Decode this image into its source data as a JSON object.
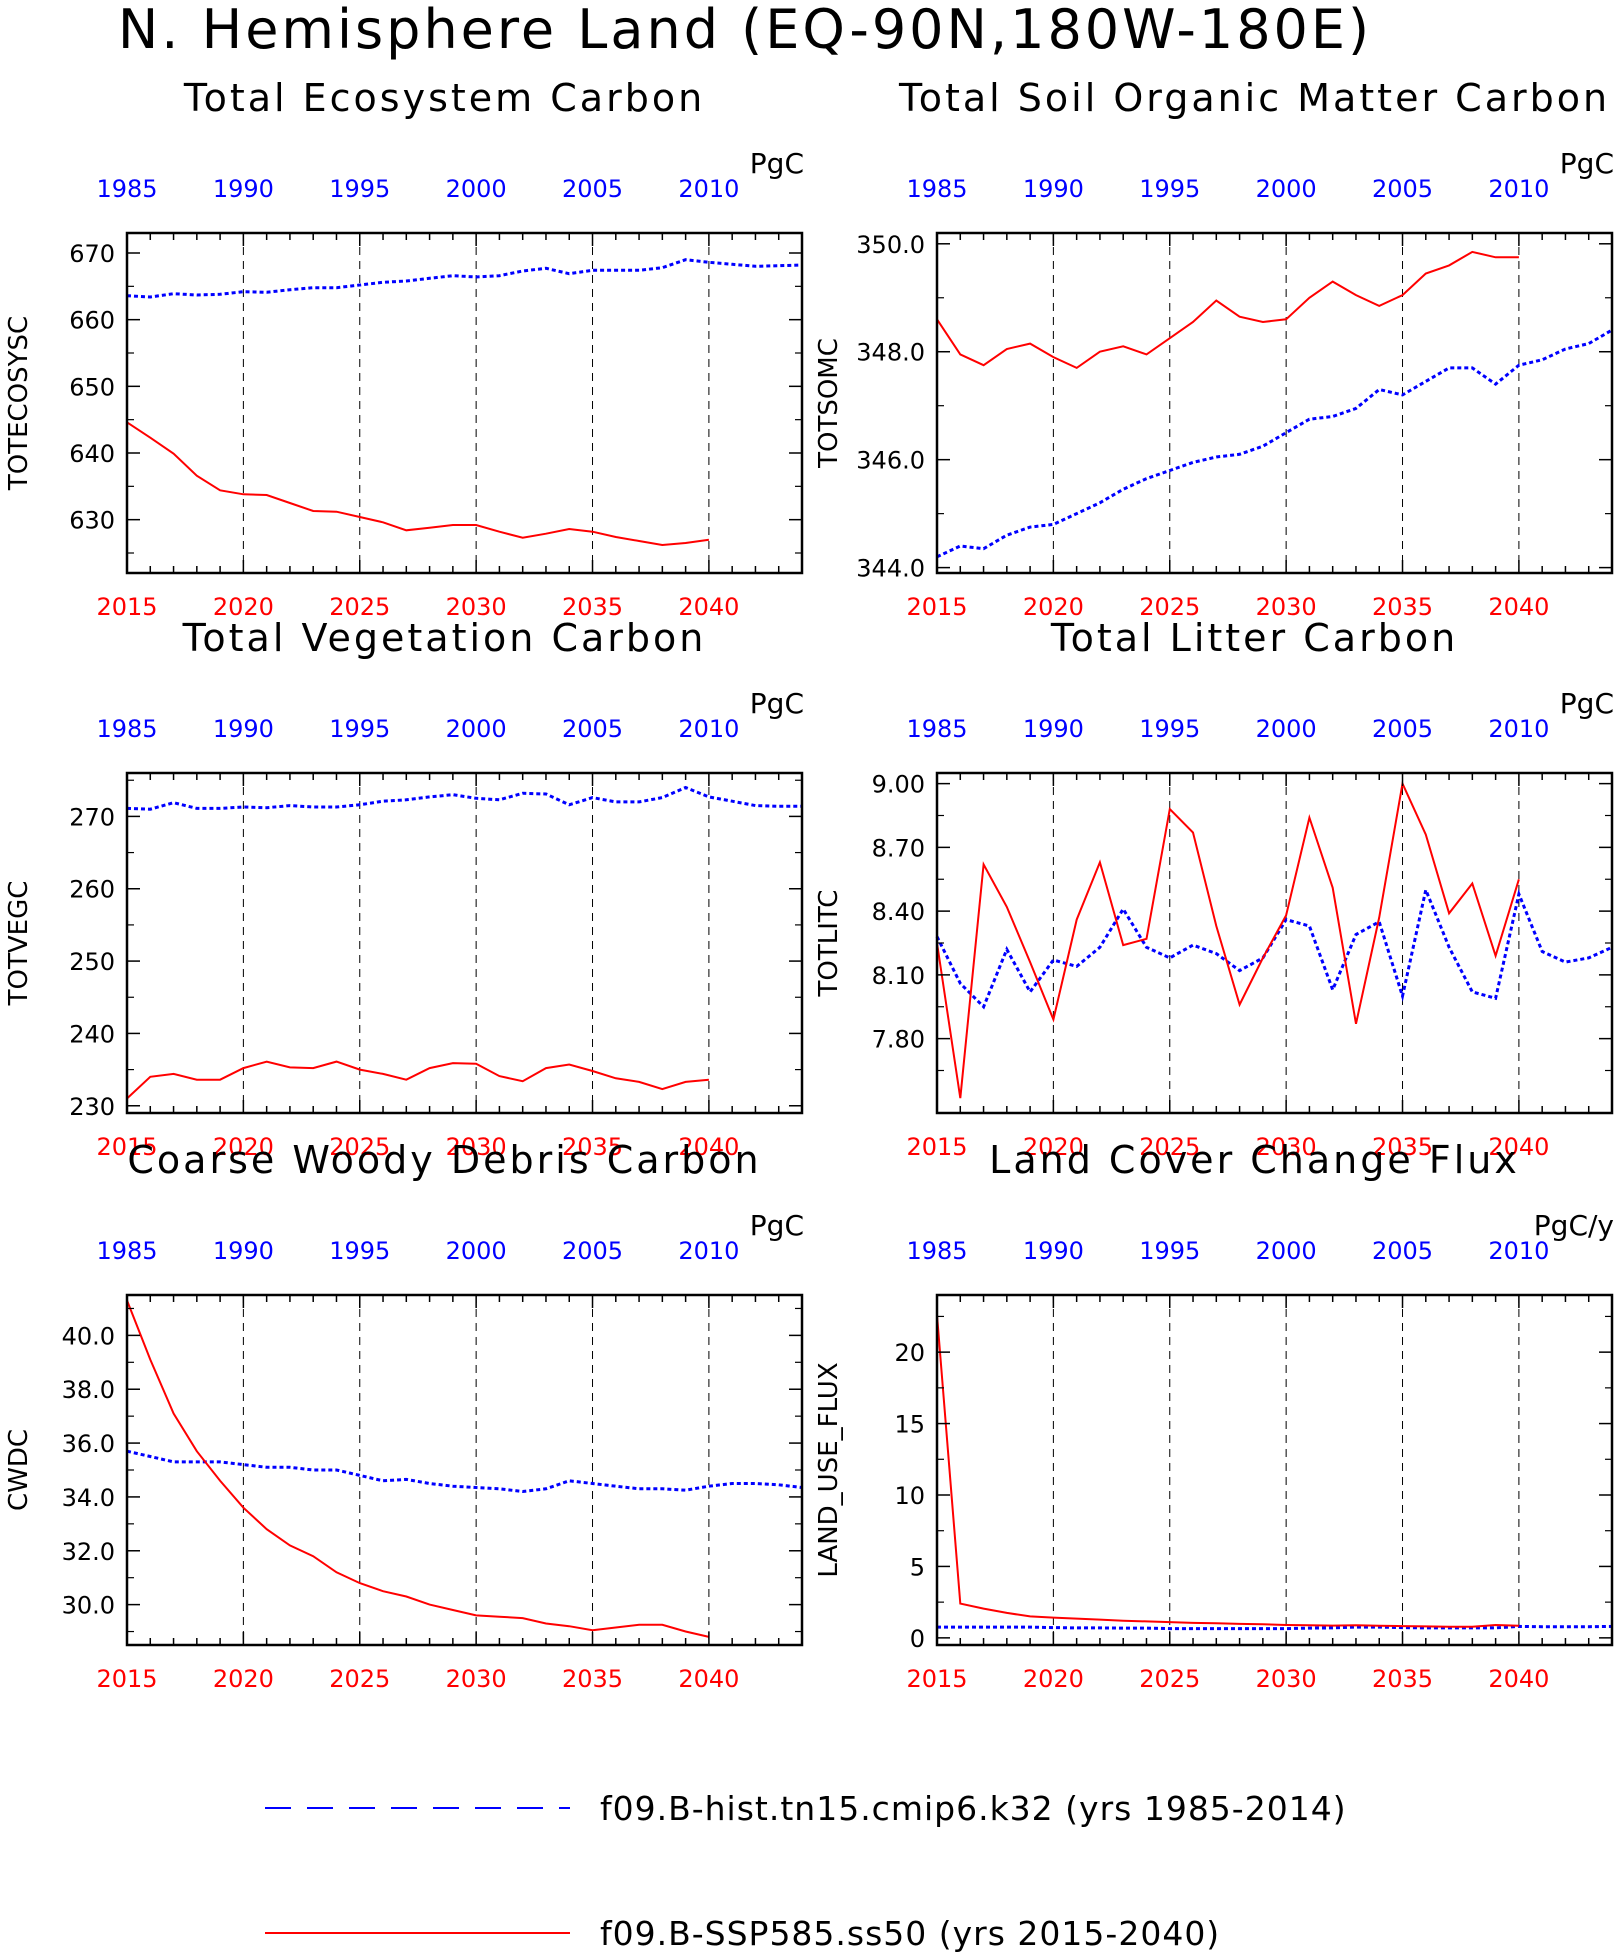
{
  "title": "N. Hemisphere Land (EQ-90N,180W-180E)",
  "colors": {
    "hist": "#0000ff",
    "ssp": "#ff0000",
    "axis": "#000000"
  },
  "legend": {
    "hist": {
      "label": "f09.B-hist.tn15.cmip6.k32 (yrs 1985-2014)",
      "style": "dashed",
      "color": "#0000ff"
    },
    "ssp": {
      "label": "f09.B-SSP585.ss50 (yrs 2015-2040)",
      "style": "solid",
      "color": "#ff0000"
    }
  },
  "chart_data": [
    {
      "type": "line",
      "title": "Total Ecosystem Carbon",
      "ylabel": "TOTECOSYSC",
      "units": "PgC",
      "ylim": [
        622,
        673
      ],
      "yticks": [
        630,
        640,
        650,
        660,
        670
      ],
      "ytick_labels": [
        "630",
        "640",
        "650",
        "660",
        "670"
      ],
      "xlim_bottom": [
        2015,
        2044
      ],
      "xlim_top": [
        1985,
        2014
      ],
      "xticks_bottom": [
        2015,
        2020,
        2025,
        2030,
        2035,
        2040
      ],
      "xticks_top": [
        1985,
        1990,
        1995,
        2000,
        2005,
        2010
      ],
      "series": [
        {
          "name": "f09.B-hist.tn15.cmip6.k32",
          "axis": "top",
          "color": "#0000ff",
          "style": "dashed",
          "x": [
            1985,
            1986,
            1987,
            1988,
            1989,
            1990,
            1991,
            1992,
            1993,
            1994,
            1995,
            1996,
            1997,
            1998,
            1999,
            2000,
            2001,
            2002,
            2003,
            2004,
            2005,
            2006,
            2007,
            2008,
            2009,
            2010,
            2011,
            2012,
            2013,
            2014
          ],
          "y": [
            663.6,
            663.4,
            663.9,
            663.7,
            663.8,
            664.2,
            664.1,
            664.5,
            664.8,
            664.8,
            665.2,
            665.6,
            665.8,
            666.2,
            666.6,
            666.4,
            666.6,
            667.3,
            667.7,
            666.9,
            667.4,
            667.4,
            667.4,
            667.8,
            669.0,
            668.6,
            668.3,
            668.0,
            668.1,
            668.2
          ]
        },
        {
          "name": "f09.B-SSP585.ss50",
          "axis": "bottom",
          "color": "#ff0000",
          "style": "solid",
          "x": [
            2015,
            2016,
            2017,
            2018,
            2019,
            2020,
            2021,
            2022,
            2023,
            2024,
            2025,
            2026,
            2027,
            2028,
            2029,
            2030,
            2031,
            2032,
            2033,
            2034,
            2035,
            2036,
            2037,
            2038,
            2039,
            2040
          ],
          "y": [
            644.6,
            642.3,
            639.9,
            636.6,
            634.4,
            633.8,
            633.7,
            632.5,
            631.3,
            631.2,
            630.4,
            629.6,
            628.4,
            628.8,
            629.2,
            629.2,
            628.2,
            627.3,
            627.9,
            628.6,
            628.2,
            627.4,
            626.8,
            626.2,
            626.5,
            627.0
          ]
        }
      ]
    },
    {
      "type": "line",
      "title": "Total Soil Organic Matter Carbon",
      "ylabel": "TOTSOMC",
      "units": "PgC",
      "ylim": [
        343.9,
        350.2
      ],
      "yticks": [
        344.0,
        346.0,
        348.0,
        350.0
      ],
      "ytick_labels": [
        "344.0",
        "346.0",
        "348.0",
        "350.0"
      ],
      "xlim_bottom": [
        2015,
        2044
      ],
      "xlim_top": [
        1985,
        2014
      ],
      "xticks_bottom": [
        2015,
        2020,
        2025,
        2030,
        2035,
        2040
      ],
      "xticks_top": [
        1985,
        1990,
        1995,
        2000,
        2005,
        2010
      ],
      "series": [
        {
          "name": "f09.B-hist.tn15.cmip6.k32",
          "axis": "top",
          "color": "#0000ff",
          "style": "dashed",
          "x": [
            1985,
            1986,
            1987,
            1988,
            1989,
            1990,
            1991,
            1992,
            1993,
            1994,
            1995,
            1996,
            1997,
            1998,
            1999,
            2000,
            2001,
            2002,
            2003,
            2004,
            2005,
            2006,
            2007,
            2008,
            2009,
            2010,
            2011,
            2012,
            2013,
            2014
          ],
          "y": [
            344.2,
            344.4,
            344.35,
            344.6,
            344.75,
            344.8,
            345.0,
            345.2,
            345.45,
            345.65,
            345.8,
            345.95,
            346.05,
            346.1,
            346.25,
            346.5,
            346.75,
            346.8,
            346.95,
            347.3,
            347.2,
            347.45,
            347.7,
            347.7,
            347.4,
            347.75,
            347.85,
            348.05,
            348.15,
            348.4
          ]
        },
        {
          "name": "f09.B-SSP585.ss50",
          "axis": "bottom",
          "color": "#ff0000",
          "style": "solid",
          "x": [
            2015,
            2016,
            2017,
            2018,
            2019,
            2020,
            2021,
            2022,
            2023,
            2024,
            2025,
            2026,
            2027,
            2028,
            2029,
            2030,
            2031,
            2032,
            2033,
            2034,
            2035,
            2036,
            2037,
            2038,
            2039,
            2040
          ],
          "y": [
            348.6,
            347.95,
            347.75,
            348.05,
            348.15,
            347.9,
            347.7,
            348.0,
            348.1,
            347.95,
            348.25,
            348.55,
            348.95,
            348.65,
            348.55,
            348.6,
            349.0,
            349.3,
            349.05,
            348.85,
            349.05,
            349.45,
            349.6,
            349.85,
            349.75,
            349.75
          ]
        }
      ]
    },
    {
      "type": "line",
      "title": "Total Vegetation Carbon",
      "ylabel": "TOTVEGC",
      "units": "PgC",
      "ylim": [
        229,
        276
      ],
      "yticks": [
        230,
        240,
        250,
        260,
        270
      ],
      "ytick_labels": [
        "230",
        "240",
        "250",
        "260",
        "270"
      ],
      "xlim_bottom": [
        2015,
        2044
      ],
      "xlim_top": [
        1985,
        2014
      ],
      "xticks_bottom": [
        2015,
        2020,
        2025,
        2030,
        2035,
        2040
      ],
      "xticks_top": [
        1985,
        1990,
        1995,
        2000,
        2005,
        2010
      ],
      "series": [
        {
          "name": "f09.B-hist.tn15.cmip6.k32",
          "axis": "top",
          "color": "#0000ff",
          "style": "dashed",
          "x": [
            1985,
            1986,
            1987,
            1988,
            1989,
            1990,
            1991,
            1992,
            1993,
            1994,
            1995,
            1996,
            1997,
            1998,
            1999,
            2000,
            2001,
            2002,
            2003,
            2004,
            2005,
            2006,
            2007,
            2008,
            2009,
            2010,
            2011,
            2012,
            2013,
            2014
          ],
          "y": [
            271.1,
            271.0,
            271.9,
            271.1,
            271.1,
            271.3,
            271.2,
            271.5,
            271.3,
            271.3,
            271.6,
            272.1,
            272.3,
            272.7,
            273.0,
            272.5,
            272.3,
            273.2,
            273.1,
            271.6,
            272.6,
            272.0,
            272.0,
            272.6,
            274.0,
            272.7,
            272.1,
            271.5,
            271.4,
            271.4
          ]
        },
        {
          "name": "f09.B-SSP585.ss50",
          "axis": "bottom",
          "color": "#ff0000",
          "style": "solid",
          "x": [
            2015,
            2016,
            2017,
            2018,
            2019,
            2020,
            2021,
            2022,
            2023,
            2024,
            2025,
            2026,
            2027,
            2028,
            2029,
            2030,
            2031,
            2032,
            2033,
            2034,
            2035,
            2036,
            2037,
            2038,
            2039,
            2040
          ],
          "y": [
            231.0,
            234.0,
            234.4,
            233.6,
            233.6,
            235.2,
            236.1,
            235.3,
            235.2,
            236.1,
            235.0,
            234.4,
            233.6,
            235.2,
            235.9,
            235.8,
            234.1,
            233.4,
            235.2,
            235.7,
            234.8,
            233.8,
            233.3,
            232.3,
            233.3,
            233.6
          ]
        }
      ]
    },
    {
      "type": "line",
      "title": "Total Litter Carbon",
      "ylabel": "TOTLITC",
      "units": "PgC",
      "ylim": [
        7.45,
        9.05
      ],
      "yticks": [
        7.8,
        8.1,
        8.4,
        8.7,
        9.0
      ],
      "ytick_labels": [
        "7.80",
        "8.10",
        "8.40",
        "8.70",
        "9.00"
      ],
      "xlim_bottom": [
        2015,
        2044
      ],
      "xlim_top": [
        1985,
        2014
      ],
      "xticks_bottom": [
        2015,
        2020,
        2025,
        2030,
        2035,
        2040
      ],
      "xticks_top": [
        1985,
        1990,
        1995,
        2000,
        2005,
        2010
      ],
      "series": [
        {
          "name": "f09.B-hist.tn15.cmip6.k32",
          "axis": "top",
          "color": "#0000ff",
          "style": "dashed",
          "x": [
            1985,
            1986,
            1987,
            1988,
            1989,
            1990,
            1991,
            1992,
            1993,
            1994,
            1995,
            1996,
            1997,
            1998,
            1999,
            2000,
            2001,
            2002,
            2003,
            2004,
            2005,
            2006,
            2007,
            2008,
            2009,
            2010,
            2011,
            2012,
            2013,
            2014
          ],
          "y": [
            8.28,
            8.06,
            7.95,
            8.22,
            8.02,
            8.17,
            8.14,
            8.23,
            8.41,
            8.23,
            8.18,
            8.24,
            8.2,
            8.12,
            8.18,
            8.36,
            8.33,
            8.03,
            8.29,
            8.35,
            8.0,
            8.5,
            8.23,
            8.02,
            7.99,
            8.48,
            8.21,
            8.16,
            8.18,
            8.23
          ]
        },
        {
          "name": "f09.B-SSP585.ss50",
          "axis": "bottom",
          "color": "#ff0000",
          "style": "solid",
          "x": [
            2015,
            2016,
            2017,
            2018,
            2019,
            2020,
            2021,
            2022,
            2023,
            2024,
            2025,
            2026,
            2027,
            2028,
            2029,
            2030,
            2031,
            2032,
            2033,
            2034,
            2035,
            2036,
            2037,
            2038,
            2039,
            2040
          ],
          "y": [
            8.25,
            7.52,
            8.62,
            8.42,
            8.16,
            7.89,
            8.36,
            8.63,
            8.24,
            8.27,
            8.88,
            8.77,
            8.33,
            7.96,
            8.18,
            8.38,
            8.84,
            8.51,
            7.87,
            8.37,
            9.0,
            8.76,
            8.39,
            8.53,
            8.19,
            8.55
          ]
        }
      ]
    },
    {
      "type": "line",
      "title": "Coarse Woody Debris Carbon",
      "ylabel": "CWDC",
      "units": "PgC",
      "ylim": [
        28.5,
        41.5
      ],
      "yticks": [
        30.0,
        32.0,
        34.0,
        36.0,
        38.0,
        40.0
      ],
      "ytick_labels": [
        "30.0",
        "32.0",
        "34.0",
        "36.0",
        "38.0",
        "40.0"
      ],
      "xlim_bottom": [
        2015,
        2044
      ],
      "xlim_top": [
        1985,
        2014
      ],
      "xticks_bottom": [
        2015,
        2020,
        2025,
        2030,
        2035,
        2040
      ],
      "xticks_top": [
        1985,
        1990,
        1995,
        2000,
        2005,
        2010
      ],
      "series": [
        {
          "name": "f09.B-hist.tn15.cmip6.k32",
          "axis": "top",
          "color": "#0000ff",
          "style": "dashed",
          "x": [
            1985,
            1986,
            1987,
            1988,
            1989,
            1990,
            1991,
            1992,
            1993,
            1994,
            1995,
            1996,
            1997,
            1998,
            1999,
            2000,
            2001,
            2002,
            2003,
            2004,
            2005,
            2006,
            2007,
            2008,
            2009,
            2010,
            2011,
            2012,
            2013,
            2014
          ],
          "y": [
            35.7,
            35.5,
            35.3,
            35.3,
            35.3,
            35.2,
            35.1,
            35.1,
            35.0,
            35.0,
            34.8,
            34.6,
            34.65,
            34.5,
            34.4,
            34.35,
            34.3,
            34.2,
            34.3,
            34.6,
            34.5,
            34.4,
            34.3,
            34.3,
            34.25,
            34.4,
            34.5,
            34.5,
            34.45,
            34.35
          ]
        },
        {
          "name": "f09.B-SSP585.ss50",
          "axis": "bottom",
          "color": "#ff0000",
          "style": "solid",
          "x": [
            2015,
            2016,
            2017,
            2018,
            2019,
            2020,
            2021,
            2022,
            2023,
            2024,
            2025,
            2026,
            2027,
            2028,
            2029,
            2030,
            2031,
            2032,
            2033,
            2034,
            2035,
            2036,
            2037,
            2038,
            2039,
            2040
          ],
          "y": [
            41.3,
            39.1,
            37.1,
            35.7,
            34.6,
            33.6,
            32.8,
            32.2,
            31.8,
            31.2,
            30.8,
            30.5,
            30.3,
            30.0,
            29.8,
            29.6,
            29.55,
            29.5,
            29.3,
            29.2,
            29.05,
            29.15,
            29.25,
            29.25,
            29.0,
            28.8
          ]
        }
      ]
    },
    {
      "type": "line",
      "title": "Land Cover Change Flux",
      "ylabel": "LAND_USE_FLUX",
      "units": "PgC/y",
      "ylim": [
        -0.5,
        24
      ],
      "yticks": [
        0,
        5,
        10,
        15,
        20
      ],
      "ytick_labels": [
        "0",
        "5",
        "10",
        "15",
        "20"
      ],
      "xlim_bottom": [
        2015,
        2044
      ],
      "xlim_top": [
        1985,
        2014
      ],
      "xticks_bottom": [
        2015,
        2020,
        2025,
        2030,
        2035,
        2040
      ],
      "xticks_top": [
        1985,
        1990,
        1995,
        2000,
        2005,
        2010
      ],
      "series": [
        {
          "name": "f09.B-hist.tn15.cmip6.k32",
          "axis": "top",
          "color": "#0000ff",
          "style": "dashed",
          "x": [
            1985,
            1986,
            1987,
            1988,
            1989,
            1990,
            1991,
            1992,
            1993,
            1994,
            1995,
            1996,
            1997,
            1998,
            1999,
            2000,
            2001,
            2002,
            2003,
            2004,
            2005,
            2006,
            2007,
            2008,
            2009,
            2010,
            2011,
            2012,
            2013,
            2014
          ],
          "y": [
            0.75,
            0.75,
            0.75,
            0.75,
            0.75,
            0.72,
            0.7,
            0.7,
            0.68,
            0.68,
            0.65,
            0.65,
            0.65,
            0.65,
            0.65,
            0.65,
            0.68,
            0.7,
            0.75,
            0.75,
            0.72,
            0.7,
            0.7,
            0.7,
            0.7,
            0.8,
            0.78,
            0.78,
            0.78,
            0.8
          ]
        },
        {
          "name": "f09.B-SSP585.ss50",
          "axis": "bottom",
          "color": "#ff0000",
          "style": "solid",
          "x": [
            2015,
            2016,
            2017,
            2018,
            2019,
            2020,
            2021,
            2022,
            2023,
            2024,
            2025,
            2026,
            2027,
            2028,
            2029,
            2030,
            2031,
            2032,
            2033,
            2034,
            2035,
            2036,
            2037,
            2038,
            2039,
            2040
          ],
          "y": [
            22.6,
            2.4,
            2.05,
            1.75,
            1.5,
            1.42,
            1.35,
            1.28,
            1.2,
            1.15,
            1.1,
            1.05,
            1.02,
            0.98,
            0.95,
            0.9,
            0.88,
            0.86,
            0.88,
            0.85,
            0.82,
            0.8,
            0.78,
            0.78,
            0.9,
            0.85
          ]
        }
      ]
    }
  ]
}
